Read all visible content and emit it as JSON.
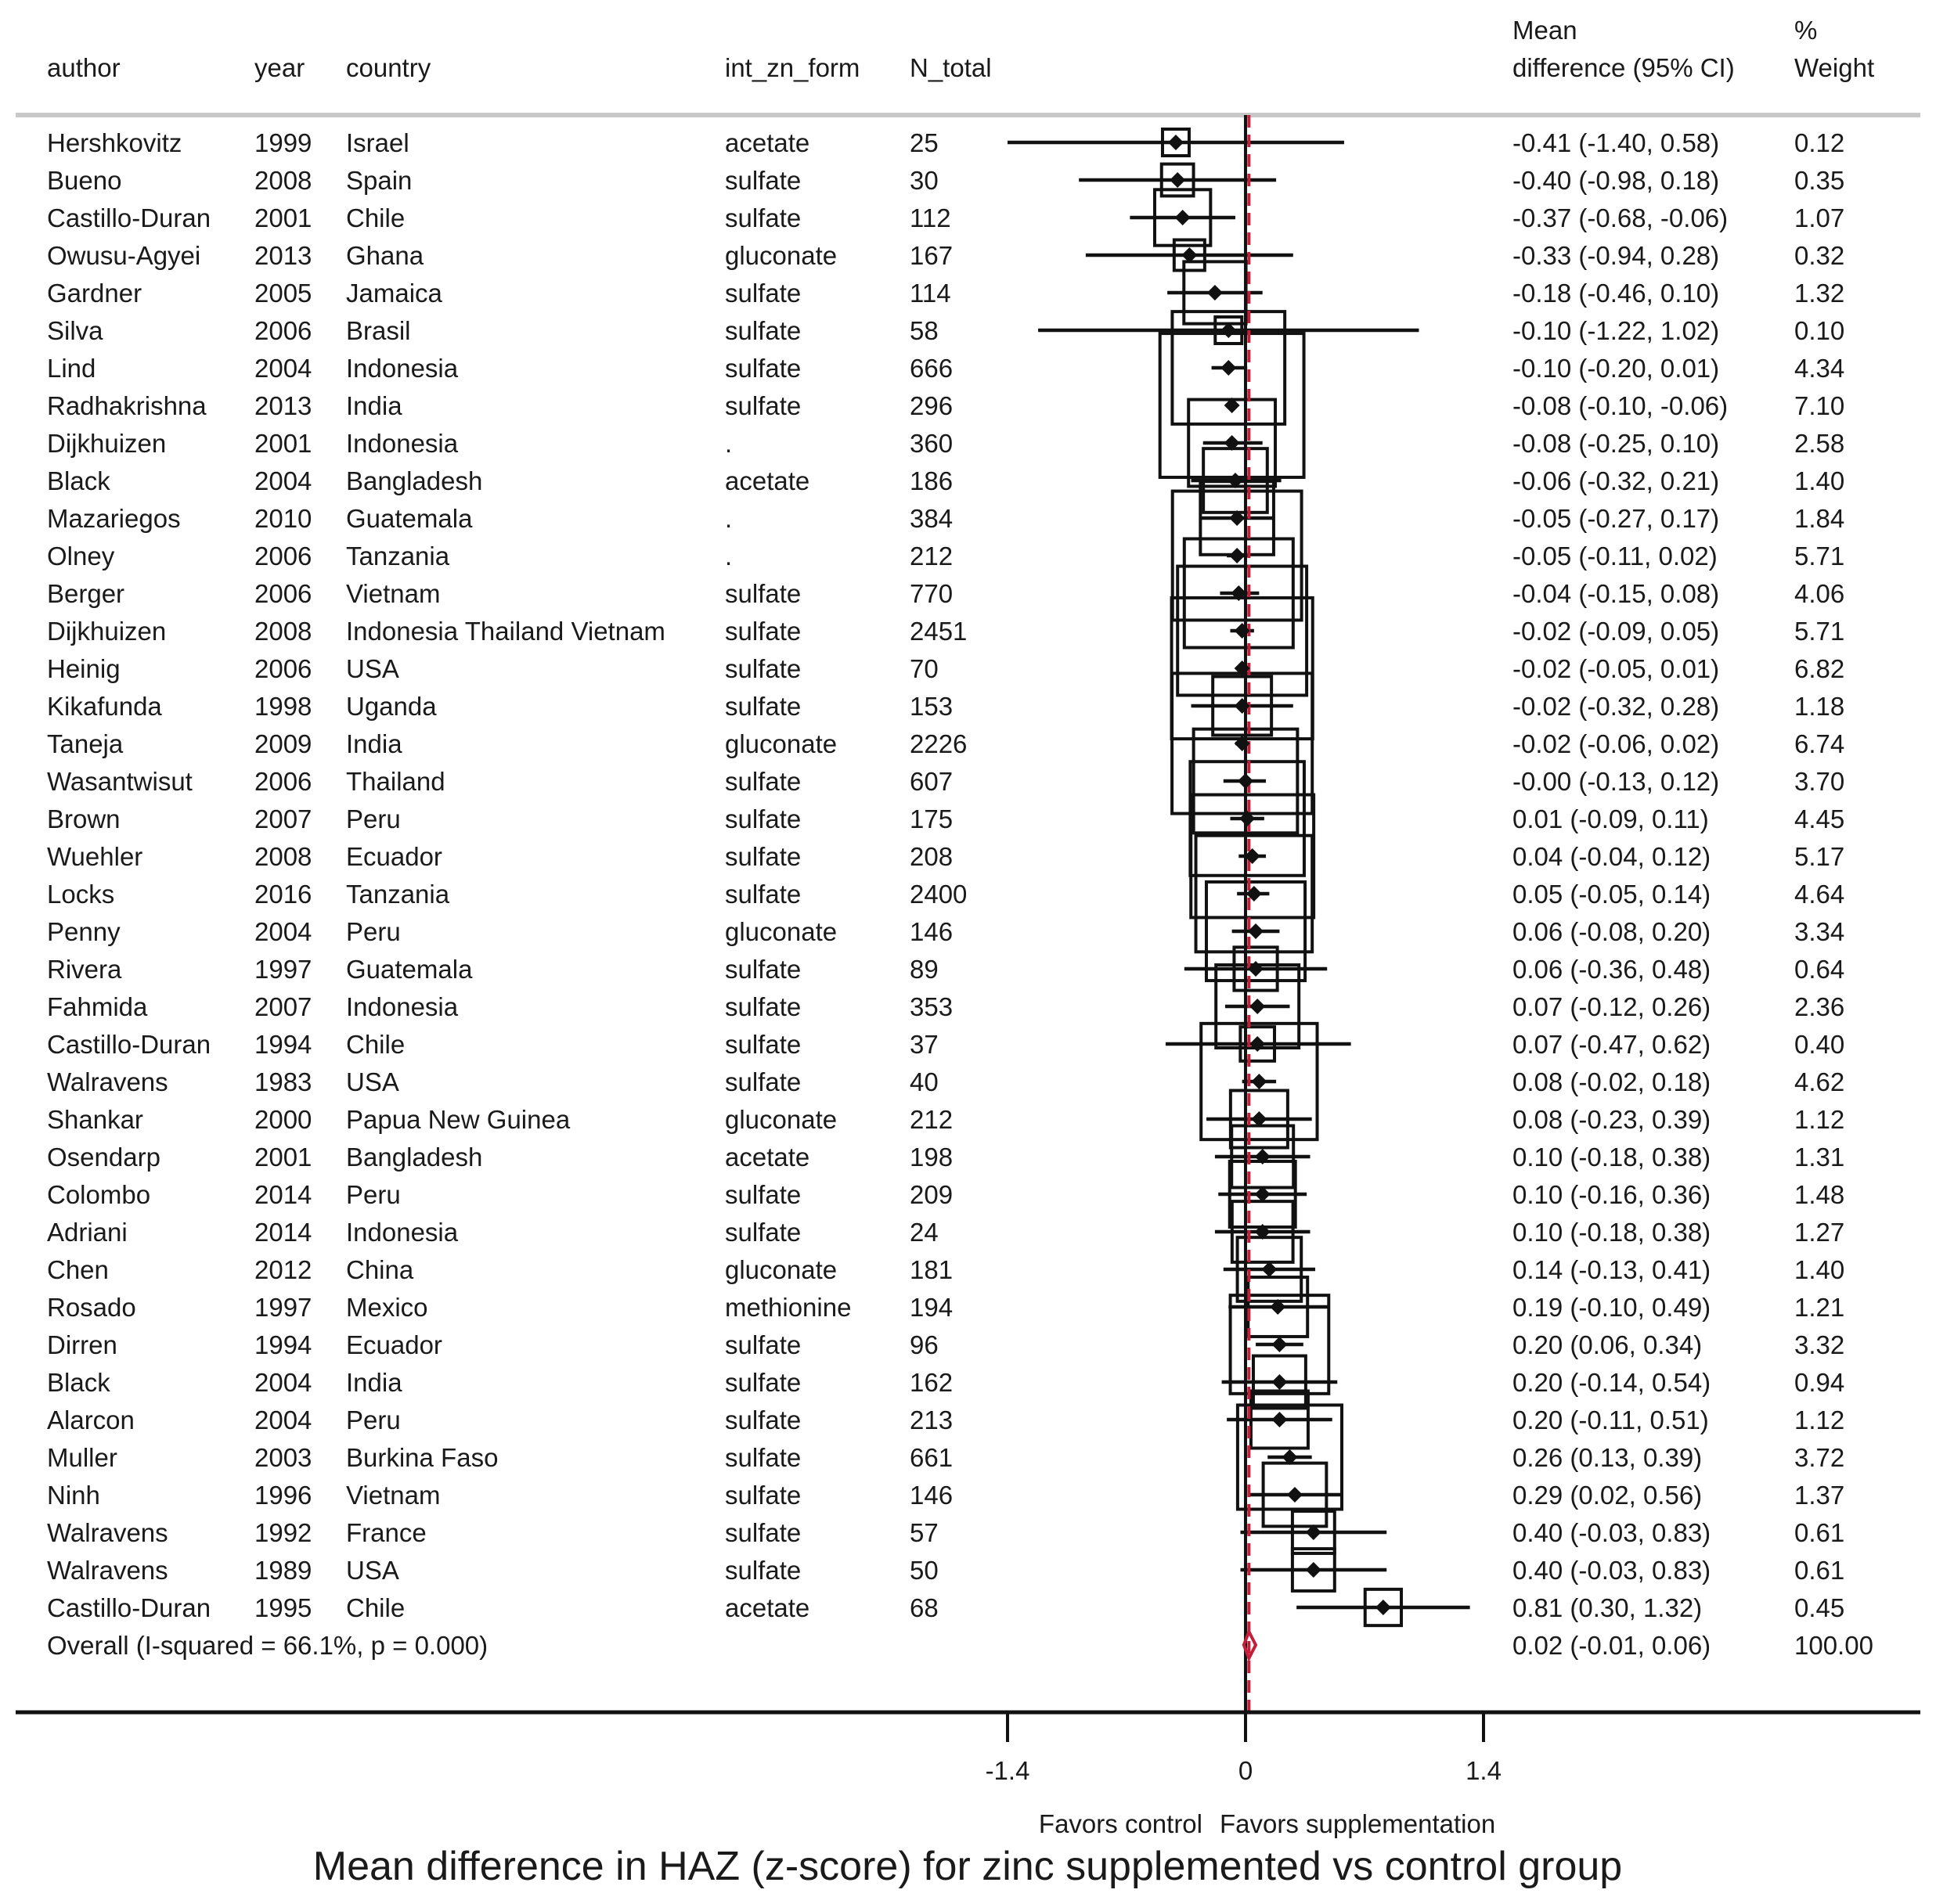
{
  "chart_data": {
    "type": "forest",
    "title": "Mean difference in HAZ (z-score) for zinc supplemented vs control group",
    "columns": {
      "author": "author",
      "year": "year",
      "country": "country",
      "form": "int_zn_form",
      "n": "N_total",
      "ci_line1": "Mean",
      "ci_line2": "difference (95% CI)",
      "w_line1": "%",
      "w_line2": "Weight"
    },
    "xlim": [
      -1.4,
      1.4
    ],
    "xticks": [
      {
        "value": -1.4,
        "label": "-1.4"
      },
      {
        "value": 0,
        "label": "0"
      },
      {
        "value": 1.4,
        "label": "1.4"
      }
    ],
    "favors_left": "Favors control",
    "favors_right": "Favors supplementation",
    "overall_line_color": "#c41e3a",
    "studies": [
      {
        "author": "Hershkovitz",
        "year": "1999",
        "country": "Israel",
        "form": "acetate",
        "n": "25",
        "md": -0.41,
        "lo": -1.4,
        "hi": 0.58,
        "weight": 0.12,
        "ci_text": "-0.41 (-1.40, 0.58)",
        "weight_text": "0.12"
      },
      {
        "author": "Bueno",
        "year": "2008",
        "country": "Spain",
        "form": "sulfate",
        "n": "30",
        "md": -0.4,
        "lo": -0.98,
        "hi": 0.18,
        "weight": 0.35,
        "ci_text": "-0.40 (-0.98, 0.18)",
        "weight_text": "0.35"
      },
      {
        "author": "Castillo-Duran",
        "year": "2001",
        "country": "Chile",
        "form": "sulfate",
        "n": "112",
        "md": -0.37,
        "lo": -0.68,
        "hi": -0.06,
        "weight": 1.07,
        "ci_text": "-0.37 (-0.68, -0.06)",
        "weight_text": "1.07"
      },
      {
        "author": "Owusu-Agyei",
        "year": "2013",
        "country": "Ghana",
        "form": "gluconate",
        "n": "167",
        "md": -0.33,
        "lo": -0.94,
        "hi": 0.28,
        "weight": 0.32,
        "ci_text": "-0.33 (-0.94, 0.28)",
        "weight_text": "0.32"
      },
      {
        "author": "Gardner",
        "year": "2005",
        "country": "Jamaica",
        "form": "sulfate",
        "n": "114",
        "md": -0.18,
        "lo": -0.46,
        "hi": 0.1,
        "weight": 1.32,
        "ci_text": "-0.18 (-0.46, 0.10)",
        "weight_text": "1.32"
      },
      {
        "author": "Silva",
        "year": "2006",
        "country": "Brasil",
        "form": "sulfate",
        "n": "58",
        "md": -0.1,
        "lo": -1.22,
        "hi": 1.02,
        "weight": 0.1,
        "ci_text": "-0.10 (-1.22, 1.02)",
        "weight_text": "0.10"
      },
      {
        "author": "Lind",
        "year": "2004",
        "country": "Indonesia",
        "form": "sulfate",
        "n": "666",
        "md": -0.1,
        "lo": -0.2,
        "hi": 0.01,
        "weight": 4.34,
        "ci_text": "-0.10 (-0.20, 0.01)",
        "weight_text": "4.34"
      },
      {
        "author": "Radhakrishna",
        "year": "2013",
        "country": "India",
        "form": "sulfate",
        "n": "296",
        "md": -0.08,
        "lo": -0.1,
        "hi": -0.06,
        "weight": 7.1,
        "ci_text": "-0.08 (-0.10, -0.06)",
        "weight_text": "7.10"
      },
      {
        "author": "Dijkhuizen",
        "year": "2001",
        "country": "Indonesia",
        "form": ".",
        "n": "360",
        "md": -0.08,
        "lo": -0.25,
        "hi": 0.1,
        "weight": 2.58,
        "ci_text": "-0.08 (-0.25, 0.10)",
        "weight_text": "2.58"
      },
      {
        "author": "Black",
        "year": "2004",
        "country": "Bangladesh",
        "form": "acetate",
        "n": "186",
        "md": -0.06,
        "lo": -0.32,
        "hi": 0.21,
        "weight": 1.4,
        "ci_text": "-0.06 (-0.32, 0.21)",
        "weight_text": "1.40"
      },
      {
        "author": "Mazariegos",
        "year": "2010",
        "country": "Guatemala",
        "form": ".",
        "n": "384",
        "md": -0.05,
        "lo": -0.27,
        "hi": 0.17,
        "weight": 1.84,
        "ci_text": "-0.05 (-0.27, 0.17)",
        "weight_text": "1.84"
      },
      {
        "author": "Olney",
        "year": "2006",
        "country": "Tanzania",
        "form": ".",
        "n": "212",
        "md": -0.05,
        "lo": -0.11,
        "hi": 0.02,
        "weight": 5.71,
        "ci_text": "-0.05 (-0.11, 0.02)",
        "weight_text": "5.71"
      },
      {
        "author": "Berger",
        "year": "2006",
        "country": "Vietnam",
        "form": "sulfate",
        "n": "770",
        "md": -0.04,
        "lo": -0.15,
        "hi": 0.08,
        "weight": 4.06,
        "ci_text": "-0.04 (-0.15, 0.08)",
        "weight_text": "4.06"
      },
      {
        "author": "Dijkhuizen",
        "year": "2008",
        "country": "Indonesia Thailand Vietnam",
        "form": "sulfate",
        "n": "2451",
        "md": -0.02,
        "lo": -0.09,
        "hi": 0.05,
        "weight": 5.71,
        "ci_text": "-0.02 (-0.09, 0.05)",
        "weight_text": "5.71"
      },
      {
        "author": "Heinig",
        "year": "2006",
        "country": "USA",
        "form": "sulfate",
        "n": "70",
        "md": -0.02,
        "lo": -0.05,
        "hi": 0.01,
        "weight": 6.82,
        "ci_text": "-0.02 (-0.05, 0.01)",
        "weight_text": "6.82"
      },
      {
        "author": "Kikafunda",
        "year": "1998",
        "country": "Uganda",
        "form": "sulfate",
        "n": "153",
        "md": -0.02,
        "lo": -0.32,
        "hi": 0.28,
        "weight": 1.18,
        "ci_text": "-0.02 (-0.32, 0.28)",
        "weight_text": "1.18"
      },
      {
        "author": "Taneja",
        "year": "2009",
        "country": "India",
        "form": "gluconate",
        "n": "2226",
        "md": -0.02,
        "lo": -0.06,
        "hi": 0.02,
        "weight": 6.74,
        "ci_text": "-0.02 (-0.06, 0.02)",
        "weight_text": "6.74"
      },
      {
        "author": "Wasantwisut",
        "year": "2006",
        "country": "Thailand",
        "form": "sulfate",
        "n": "607",
        "md": 0.0,
        "lo": -0.13,
        "hi": 0.12,
        "weight": 3.7,
        "ci_text": "-0.00 (-0.13, 0.12)",
        "weight_text": "3.70"
      },
      {
        "author": "Brown",
        "year": "2007",
        "country": "Peru",
        "form": "sulfate",
        "n": "175",
        "md": 0.01,
        "lo": -0.09,
        "hi": 0.11,
        "weight": 4.45,
        "ci_text": "0.01 (-0.09, 0.11)",
        "weight_text": "4.45"
      },
      {
        "author": "Wuehler",
        "year": "2008",
        "country": "Ecuador",
        "form": "sulfate",
        "n": "208",
        "md": 0.04,
        "lo": -0.04,
        "hi": 0.12,
        "weight": 5.17,
        "ci_text": "0.04 (-0.04, 0.12)",
        "weight_text": "5.17"
      },
      {
        "author": "Locks",
        "year": "2016",
        "country": "Tanzania",
        "form": "sulfate",
        "n": "2400",
        "md": 0.05,
        "lo": -0.05,
        "hi": 0.14,
        "weight": 4.64,
        "ci_text": "0.05 (-0.05, 0.14)",
        "weight_text": "4.64"
      },
      {
        "author": "Penny",
        "year": "2004",
        "country": "Peru",
        "form": "gluconate",
        "n": "146",
        "md": 0.06,
        "lo": -0.08,
        "hi": 0.2,
        "weight": 3.34,
        "ci_text": "0.06 (-0.08, 0.20)",
        "weight_text": "3.34"
      },
      {
        "author": "Rivera",
        "year": "1997",
        "country": "Guatemala",
        "form": "sulfate",
        "n": "89",
        "md": 0.06,
        "lo": -0.36,
        "hi": 0.48,
        "weight": 0.64,
        "ci_text": "0.06 (-0.36, 0.48)",
        "weight_text": "0.64"
      },
      {
        "author": "Fahmida",
        "year": "2007",
        "country": "Indonesia",
        "form": "sulfate",
        "n": "353",
        "md": 0.07,
        "lo": -0.12,
        "hi": 0.26,
        "weight": 2.36,
        "ci_text": "0.07 (-0.12, 0.26)",
        "weight_text": "2.36"
      },
      {
        "author": "Castillo-Duran",
        "year": "1994",
        "country": "Chile",
        "form": "sulfate",
        "n": "37",
        "md": 0.07,
        "lo": -0.47,
        "hi": 0.62,
        "weight": 0.4,
        "ci_text": "0.07 (-0.47, 0.62)",
        "weight_text": "0.40"
      },
      {
        "author": "Walravens",
        "year": "1983",
        "country": "USA",
        "form": "sulfate",
        "n": "40",
        "md": 0.08,
        "lo": -0.02,
        "hi": 0.18,
        "weight": 4.62,
        "ci_text": "0.08 (-0.02, 0.18)",
        "weight_text": "4.62"
      },
      {
        "author": "Shankar",
        "year": "2000",
        "country": "Papua New Guinea",
        "form": "gluconate",
        "n": "212",
        "md": 0.08,
        "lo": -0.23,
        "hi": 0.39,
        "weight": 1.12,
        "ci_text": "0.08 (-0.23, 0.39)",
        "weight_text": "1.12"
      },
      {
        "author": "Osendarp",
        "year": "2001",
        "country": "Bangladesh",
        "form": "acetate",
        "n": "198",
        "md": 0.1,
        "lo": -0.18,
        "hi": 0.38,
        "weight": 1.31,
        "ci_text": "0.10 (-0.18, 0.38)",
        "weight_text": "1.31"
      },
      {
        "author": "Colombo",
        "year": "2014",
        "country": "Peru",
        "form": "sulfate",
        "n": "209",
        "md": 0.1,
        "lo": -0.16,
        "hi": 0.36,
        "weight": 1.48,
        "ci_text": "0.10 (-0.16, 0.36)",
        "weight_text": "1.48"
      },
      {
        "author": "Adriani",
        "year": "2014",
        "country": "Indonesia",
        "form": "sulfate",
        "n": "24",
        "md": 0.1,
        "lo": -0.18,
        "hi": 0.38,
        "weight": 1.27,
        "ci_text": "0.10 (-0.18, 0.38)",
        "weight_text": "1.27"
      },
      {
        "author": "Chen",
        "year": "2012",
        "country": "China",
        "form": "gluconate",
        "n": "181",
        "md": 0.14,
        "lo": -0.13,
        "hi": 0.41,
        "weight": 1.4,
        "ci_text": "0.14 (-0.13, 0.41)",
        "weight_text": "1.40"
      },
      {
        "author": "Rosado",
        "year": "1997",
        "country": "Mexico",
        "form": "methionine",
        "n": "194",
        "md": 0.19,
        "lo": -0.1,
        "hi": 0.49,
        "weight": 1.21,
        "ci_text": "0.19 (-0.10, 0.49)",
        "weight_text": "1.21"
      },
      {
        "author": "Dirren",
        "year": "1994",
        "country": "Ecuador",
        "form": "sulfate",
        "n": "96",
        "md": 0.2,
        "lo": 0.06,
        "hi": 0.34,
        "weight": 3.32,
        "ci_text": "0.20 (0.06, 0.34)",
        "weight_text": "3.32"
      },
      {
        "author": "Black",
        "year": "2004",
        "country": "India",
        "form": "sulfate",
        "n": "162",
        "md": 0.2,
        "lo": -0.14,
        "hi": 0.54,
        "weight": 0.94,
        "ci_text": "0.20 (-0.14, 0.54)",
        "weight_text": "0.94"
      },
      {
        "author": "Alarcon",
        "year": "2004",
        "country": "Peru",
        "form": "sulfate",
        "n": "213",
        "md": 0.2,
        "lo": -0.11,
        "hi": 0.51,
        "weight": 1.12,
        "ci_text": "0.20 (-0.11, 0.51)",
        "weight_text": "1.12"
      },
      {
        "author": "Muller",
        "year": "2003",
        "country": "Burkina Faso",
        "form": "sulfate",
        "n": "661",
        "md": 0.26,
        "lo": 0.13,
        "hi": 0.39,
        "weight": 3.72,
        "ci_text": "0.26 (0.13, 0.39)",
        "weight_text": "3.72"
      },
      {
        "author": "Ninh",
        "year": "1996",
        "country": "Vietnam",
        "form": "sulfate",
        "n": "146",
        "md": 0.29,
        "lo": 0.02,
        "hi": 0.56,
        "weight": 1.37,
        "ci_text": "0.29 (0.02, 0.56)",
        "weight_text": "1.37"
      },
      {
        "author": "Walravens",
        "year": "1992",
        "country": "France",
        "form": "sulfate",
        "n": "57",
        "md": 0.4,
        "lo": -0.03,
        "hi": 0.83,
        "weight": 0.61,
        "ci_text": "0.40 (-0.03, 0.83)",
        "weight_text": "0.61"
      },
      {
        "author": "Walravens",
        "year": "1989",
        "country": "USA",
        "form": "sulfate",
        "n": "50",
        "md": 0.4,
        "lo": -0.03,
        "hi": 0.83,
        "weight": 0.61,
        "ci_text": "0.40 (-0.03, 0.83)",
        "weight_text": "0.61"
      },
      {
        "author": "Castillo-Duran",
        "year": "1995",
        "country": "Chile",
        "form": "acetate",
        "n": "68",
        "md": 0.81,
        "lo": 0.3,
        "hi": 1.32,
        "weight": 0.45,
        "ci_text": "0.81 (0.30, 1.32)",
        "weight_text": "0.45"
      }
    ],
    "overall": {
      "label": "Overall  (I-squared = 66.1%, p = 0.000)",
      "md": 0.02,
      "lo": -0.01,
      "hi": 0.06,
      "weight": 100.0,
      "ci_text": "0.02 (-0.01, 0.06)",
      "weight_text": "100.00"
    }
  }
}
